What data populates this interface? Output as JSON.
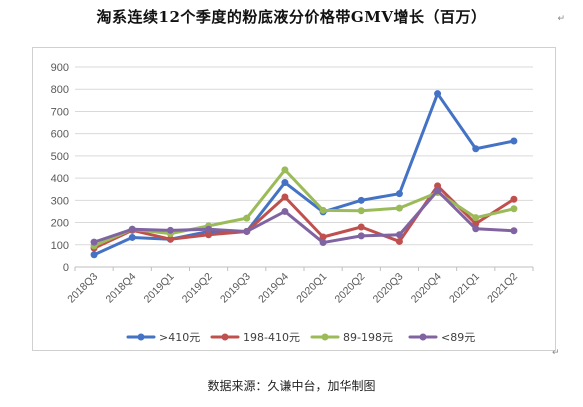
{
  "title": "淘系连续12个季度的粉底液分价格带GMV增长（百万）",
  "source": "数据来源：久谦中台，加华制图",
  "chart_data": {
    "type": "line",
    "title": "淘系连续12个季度的粉底液分价格带GMV增长（百万）",
    "xlabel": "",
    "ylabel": "",
    "ylim": [
      0,
      900
    ],
    "yticks": [
      0,
      100,
      200,
      300,
      400,
      500,
      600,
      700,
      800,
      900
    ],
    "grid": true,
    "legend": "bottom",
    "categories": [
      "2018Q3",
      "2018Q4",
      "2019Q1",
      "2019Q2",
      "2019Q3",
      "2019Q4",
      "2020Q1",
      "2020Q2",
      "2020Q3",
      "2020Q4",
      "2021Q1",
      "2021Q2"
    ],
    "series": [
      {
        "name": ">410元",
        "color": "#4472C4",
        "values": [
          55,
          133,
          125,
          160,
          160,
          380,
          248,
          300,
          330,
          780,
          532,
          567
        ]
      },
      {
        "name": "198-410元",
        "color": "#C0504D",
        "values": [
          85,
          165,
          125,
          145,
          160,
          315,
          135,
          180,
          115,
          365,
          195,
          305
        ]
      },
      {
        "name": "89-198元",
        "color": "#9BBB59",
        "values": [
          95,
          170,
          150,
          185,
          220,
          437,
          255,
          253,
          265,
          335,
          222,
          262
        ]
      },
      {
        "name": "<89元",
        "color": "#8064A2",
        "values": [
          112,
          170,
          165,
          170,
          160,
          250,
          110,
          140,
          145,
          343,
          172,
          163
        ]
      }
    ]
  }
}
